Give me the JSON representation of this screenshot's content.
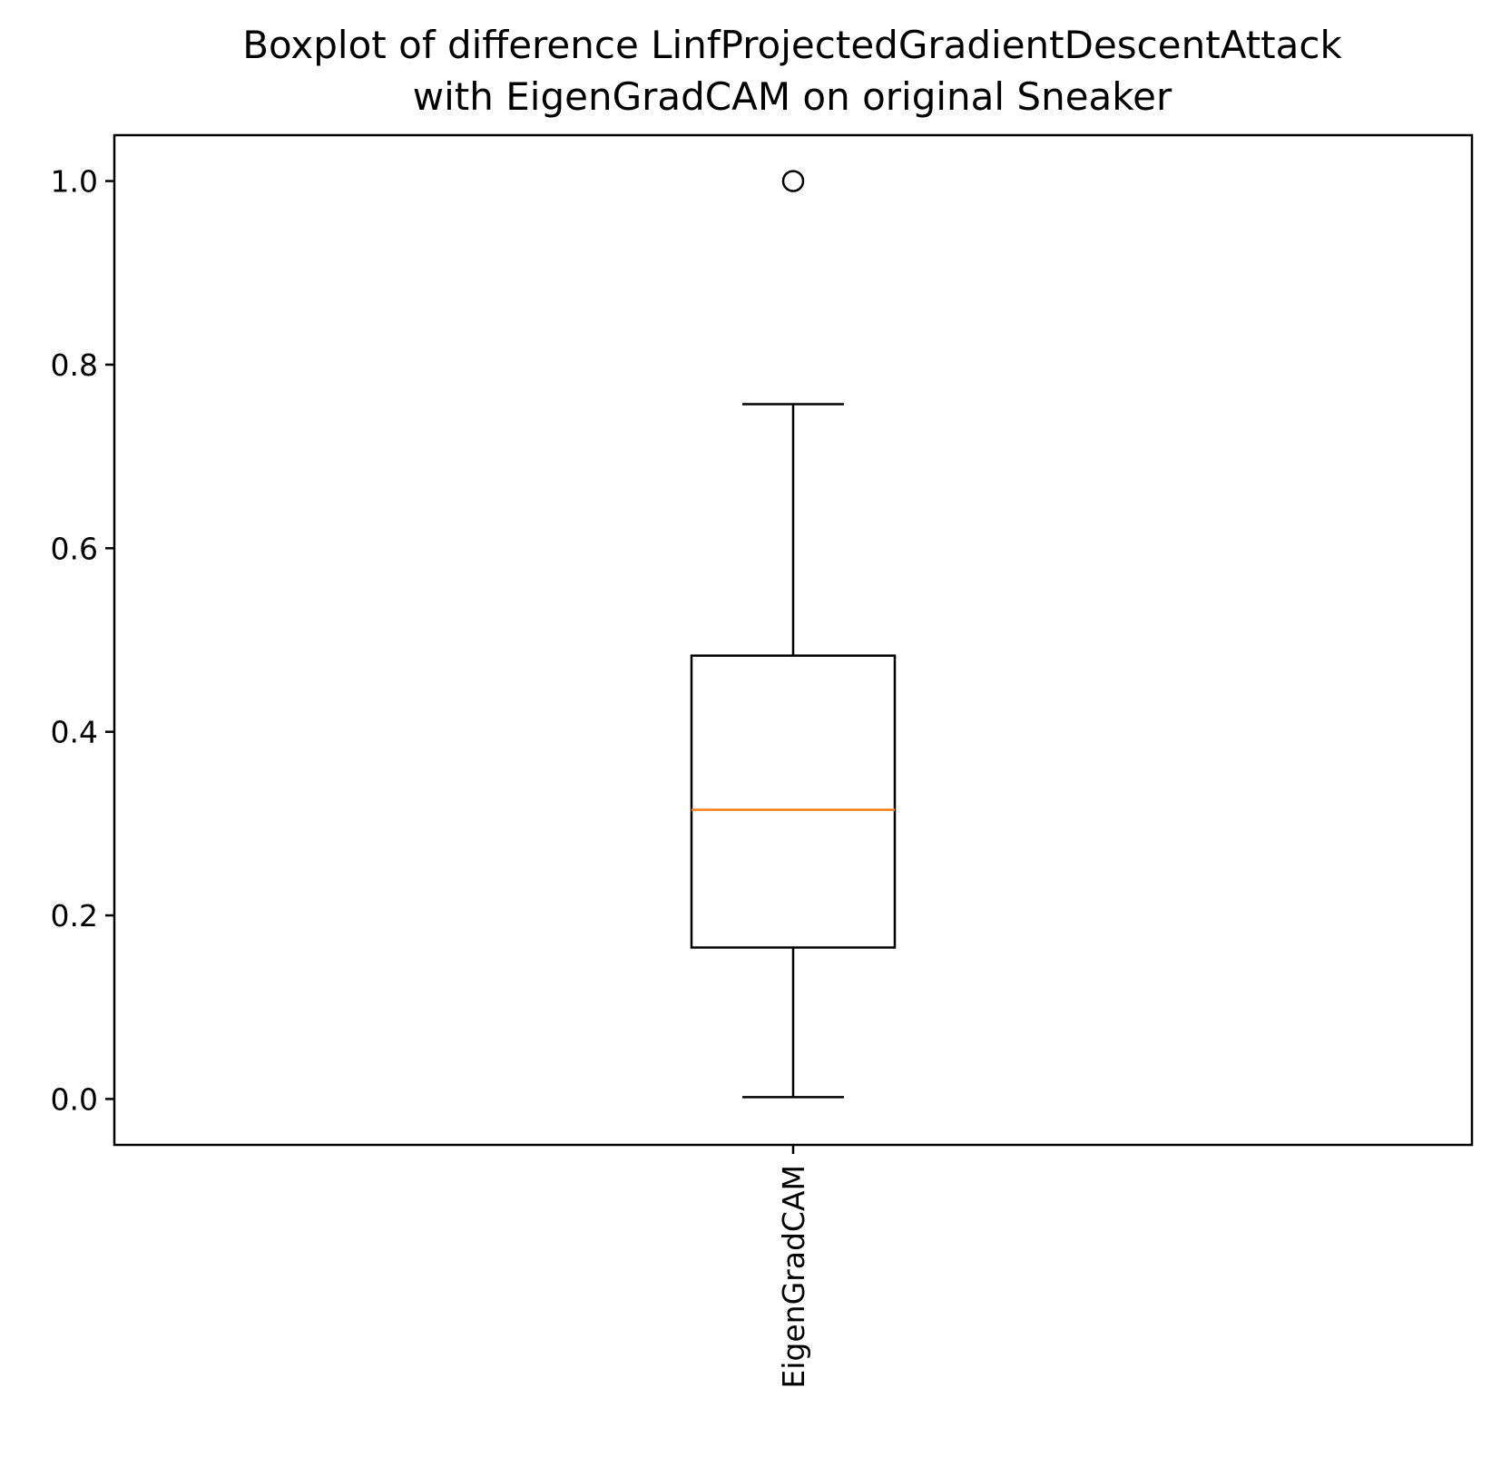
{
  "chart_data": {
    "type": "box",
    "title_lines": [
      "Boxplot of difference LinfProjectedGradientDescentAttack",
      "with EigenGradCAM on original Sneaker"
    ],
    "xlabel": "",
    "ylabel": "",
    "categories": [
      "EigenGradCAM"
    ],
    "boxes": [
      {
        "category": "EigenGradCAM",
        "whisker_low": 0.002,
        "q1": 0.165,
        "median": 0.315,
        "q3": 0.483,
        "whisker_high": 0.757,
        "outliers": [
          1.0
        ]
      }
    ],
    "ylim": [
      -0.05,
      1.05
    ],
    "yticks": [
      {
        "value": 0.0,
        "label": "0.0"
      },
      {
        "value": 0.2,
        "label": "0.2"
      },
      {
        "value": 0.4,
        "label": "0.4"
      },
      {
        "value": 0.6,
        "label": "0.6"
      },
      {
        "value": 0.8,
        "label": "0.8"
      },
      {
        "value": 1.0,
        "label": "1.0"
      }
    ],
    "xtick_rotation_deg": 90,
    "grid": false,
    "legend": "none",
    "colors": {
      "box": "#000000",
      "median": "#ff7f0e",
      "axes": "#000000",
      "background": "#ffffff"
    }
  }
}
